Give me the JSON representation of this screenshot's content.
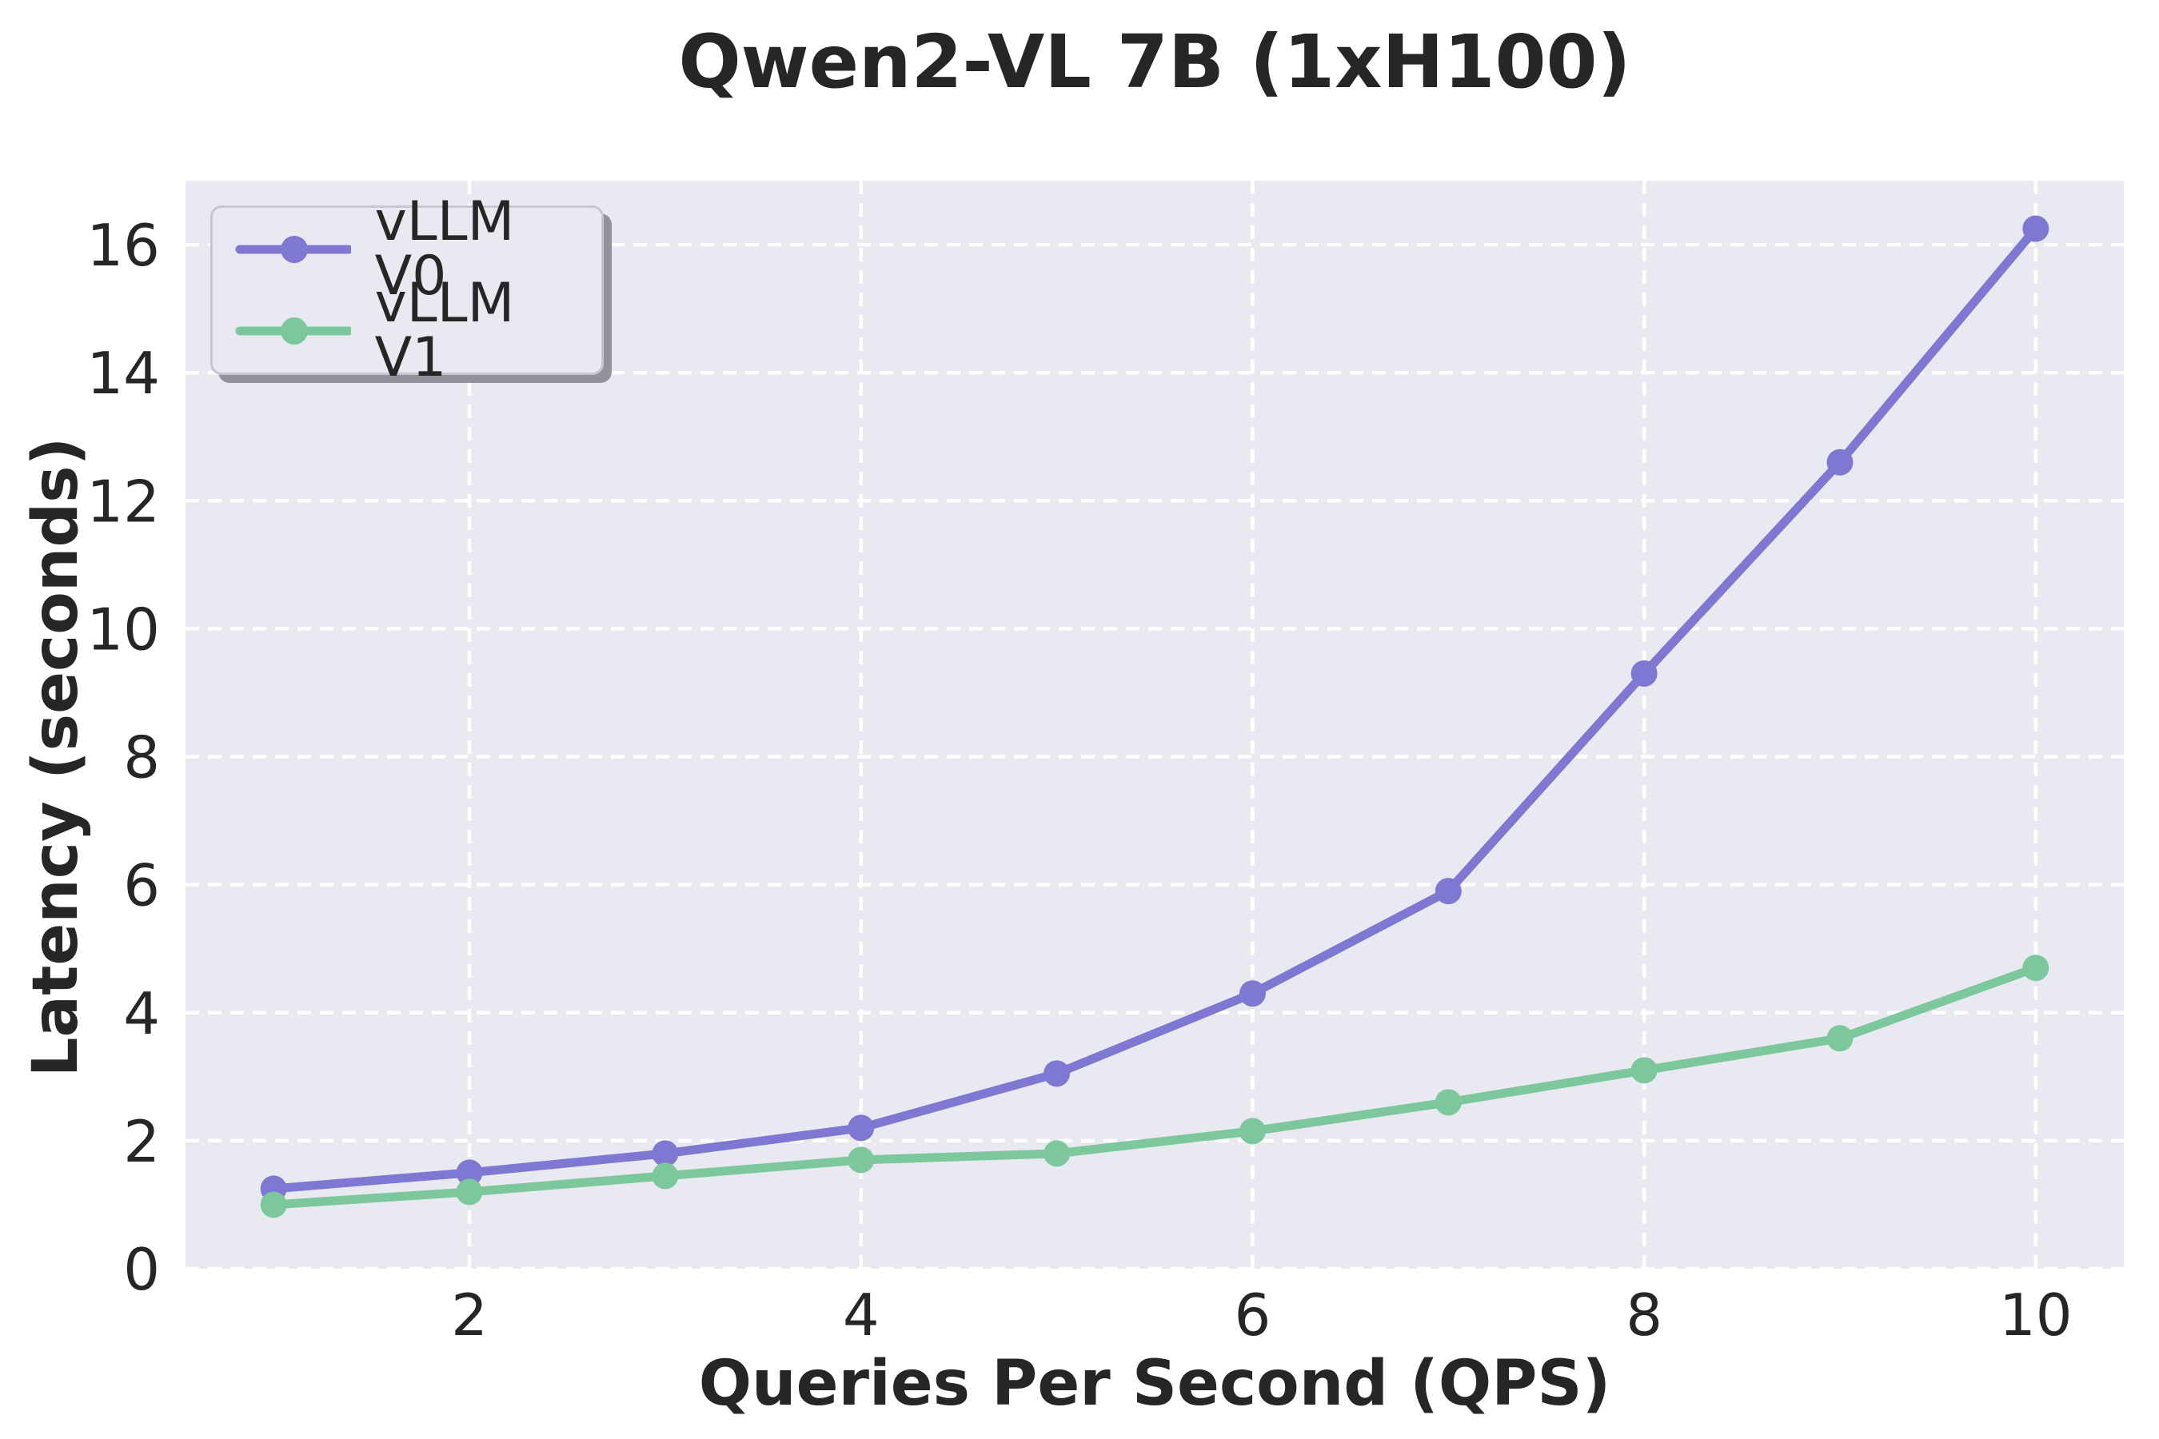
{
  "chart_data": {
    "type": "line",
    "title": "Qwen2-VL 7B (1xH100)",
    "xlabel": "Queries Per Second (QPS)",
    "ylabel": "Latency (seconds)",
    "x": [
      1,
      2,
      3,
      4,
      5,
      6,
      7,
      8,
      9,
      10
    ],
    "series": [
      {
        "name": "vLLM V0",
        "color": "#7e78d2",
        "values": [
          1.25,
          1.5,
          1.8,
          2.2,
          3.05,
          4.3,
          5.9,
          9.3,
          12.6,
          16.25
        ]
      },
      {
        "name": "vLLM V1",
        "color": "#7cc79b",
        "values": [
          1.0,
          1.2,
          1.45,
          1.7,
          1.8,
          2.15,
          2.6,
          3.1,
          3.6,
          4.7
        ]
      }
    ],
    "xticks": [
      2,
      4,
      6,
      8,
      10
    ],
    "yticks": [
      0,
      2,
      4,
      6,
      8,
      10,
      12,
      14,
      16
    ],
    "xlim": [
      0.55,
      10.45
    ],
    "ylim": [
      0,
      17
    ],
    "grid": true,
    "grid_style": "dashed",
    "legend_position": "upper left"
  },
  "style": {
    "figure_bg": "#ffffff",
    "plot_bg": "#e9e9f1",
    "grid_color": "#ffffff",
    "text_color": "#262626",
    "legend_bg": "#e9e9f1",
    "legend_border": "#c7c7cf",
    "legend_shadow": "#92929c"
  }
}
